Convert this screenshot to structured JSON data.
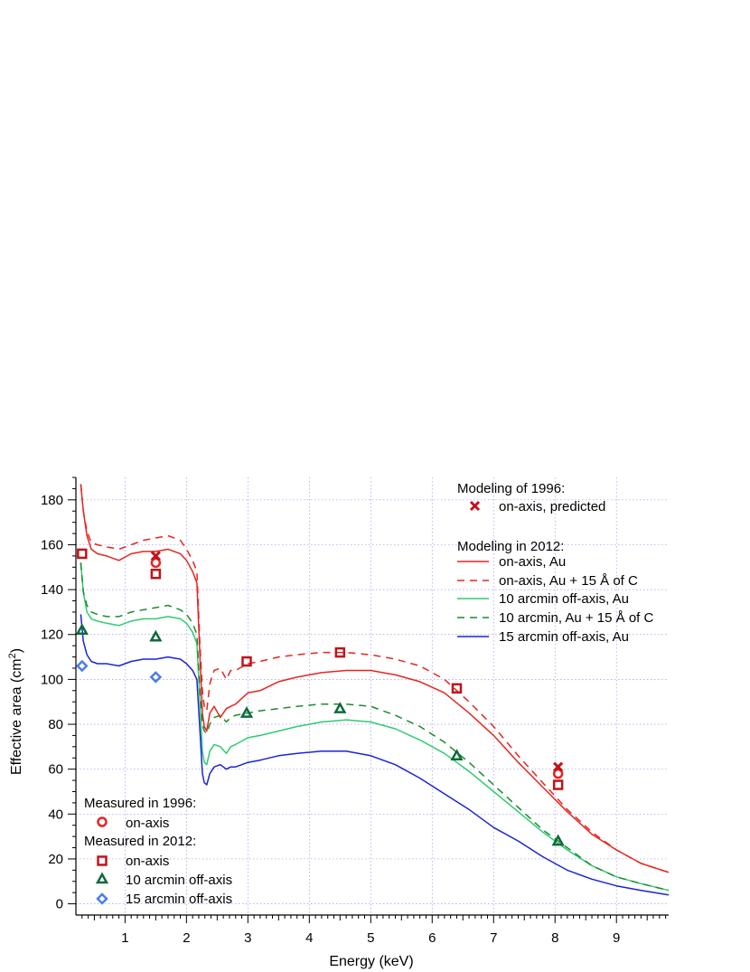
{
  "chart_data": {
    "type": "line",
    "xlabel": "Energy (keV)",
    "ylabel_main": "Effective area (cm",
    "ylabel_sup": "2",
    "ylabel_close": ")",
    "xlim": [
      0.2,
      9.85
    ],
    "ylim": [
      -5,
      190
    ],
    "x_ticks": [
      1,
      2,
      3,
      4,
      5,
      6,
      7,
      8,
      9
    ],
    "y_ticks": [
      0,
      20,
      40,
      60,
      80,
      100,
      120,
      140,
      160,
      180
    ],
    "x_tick_labels": [
      "1",
      "2",
      "3",
      "4",
      "5",
      "6",
      "7",
      "8",
      "9"
    ],
    "y_tick_labels": [
      "0",
      "20",
      "40",
      "60",
      "80",
      "100",
      "120",
      "140",
      "160",
      "180"
    ],
    "grid": true,
    "legend_top_right": {
      "header1": "Modeling of 1996:",
      "entry_pred": "on-axis, predicted",
      "header2": "Modeling in 2012:",
      "entry_au": "on-axis, Au",
      "entry_auc": "on-axis,  Au + 15 Å of C",
      "entry_10au": "10 arcmin off-axis, Au",
      "entry_10auc": "10 arcmin, Au + 15 Å of C",
      "entry_15au": "15 arcmin off-axis, Au"
    },
    "legend_bottom_left": {
      "header1": "Measured in 1996:",
      "entry_m96": "on-axis",
      "header2": "Measured in 2012:",
      "entry_m12on": "on-axis",
      "entry_m12_10": "10 arcmin off-axis",
      "entry_m12_15": "15 arcmin off-axis"
    },
    "colors": {
      "red": "#e8251f",
      "darkred": "#c4121a",
      "green": "#2ecc71",
      "darkgreen": "#1d8a2e",
      "triangle": "#0e6b3a",
      "blue": "#1a24d6",
      "lightblue": "#4a7de8"
    },
    "series": [
      {
        "name": "on-axis, Au",
        "color": "#e8251f",
        "dash": false,
        "x": [
          0.28,
          0.32,
          0.38,
          0.45,
          0.55,
          0.7,
          0.9,
          1.1,
          1.3,
          1.5,
          1.7,
          1.9,
          2.0,
          2.1,
          2.17,
          2.22,
          2.26,
          2.29,
          2.33,
          2.38,
          2.45,
          2.55,
          2.65,
          2.72,
          2.8,
          3.0,
          3.2,
          3.5,
          3.8,
          4.2,
          4.6,
          5.0,
          5.4,
          5.8,
          6.2,
          6.6,
          7.0,
          7.4,
          7.8,
          8.2,
          8.6,
          9.0,
          9.4,
          9.85
        ],
        "y": [
          187,
          175,
          164,
          158,
          156,
          155,
          153,
          156,
          157,
          157,
          158,
          156,
          153,
          148,
          143,
          110,
          85,
          79,
          77,
          85,
          88,
          83,
          87,
          88,
          89,
          94,
          95,
          99,
          101,
          103,
          104,
          104,
          102,
          99,
          94,
          85,
          75,
          63,
          52,
          41,
          31,
          24,
          18,
          14
        ]
      },
      {
        "name": "on-axis,  Au + 15 Å of C",
        "color": "#e8251f",
        "dash": true,
        "x": [
          0.28,
          0.32,
          0.38,
          0.45,
          0.55,
          0.7,
          0.9,
          1.1,
          1.3,
          1.5,
          1.7,
          1.9,
          2.0,
          2.1,
          2.17,
          2.22,
          2.26,
          2.29,
          2.33,
          2.38,
          2.45,
          2.55,
          2.65,
          2.72,
          2.8,
          3.0,
          3.2,
          3.5,
          3.8,
          4.2,
          4.6,
          5.0,
          5.4,
          5.8,
          6.2,
          6.6,
          7.0,
          7.4,
          7.8,
          8.2,
          8.6,
          9.0,
          9.4,
          9.85
        ],
        "y": [
          187,
          175,
          166,
          161,
          160,
          159,
          158,
          160,
          162,
          163,
          164,
          162,
          158,
          153,
          148,
          115,
          95,
          88,
          86,
          98,
          104,
          105,
          100,
          104,
          104,
          107,
          108,
          110,
          111,
          112,
          112,
          111,
          109,
          106,
          100,
          90,
          79,
          66,
          54,
          42,
          32,
          24,
          18,
          14
        ]
      },
      {
        "name": "10 arcmin off-axis, Au",
        "color": "#2ecc71",
        "dash": false,
        "x": [
          0.28,
          0.32,
          0.38,
          0.45,
          0.55,
          0.7,
          0.9,
          1.1,
          1.3,
          1.5,
          1.7,
          1.9,
          2.0,
          2.1,
          2.17,
          2.22,
          2.26,
          2.29,
          2.33,
          2.38,
          2.45,
          2.55,
          2.65,
          2.72,
          2.8,
          3.0,
          3.2,
          3.5,
          3.8,
          4.2,
          4.6,
          5.0,
          5.4,
          5.8,
          6.2,
          6.6,
          7.0,
          7.4,
          7.8,
          8.2,
          8.6,
          9.0,
          9.4,
          9.85
        ],
        "y": [
          152,
          139,
          130,
          127,
          126,
          125,
          124,
          126,
          127,
          127,
          128,
          127,
          125,
          121,
          116,
          90,
          68,
          63,
          62,
          68,
          71,
          70,
          67,
          70,
          71,
          74,
          75,
          77,
          79,
          81,
          82,
          81,
          78,
          73,
          67,
          59,
          50,
          41,
          32,
          24,
          17,
          12,
          9,
          6
        ]
      },
      {
        "name": "10 arcmin, Au + 15 Å of C",
        "color": "#1d8a2e",
        "dash": true,
        "x": [
          0.28,
          0.32,
          0.38,
          0.45,
          0.55,
          0.7,
          0.9,
          1.1,
          1.3,
          1.5,
          1.7,
          1.9,
          2.0,
          2.1,
          2.17,
          2.22,
          2.26,
          2.29,
          2.33,
          2.38,
          2.45,
          2.55,
          2.65,
          2.72,
          2.8,
          3.0,
          3.2,
          3.5,
          3.8,
          4.2,
          4.6,
          5.0,
          5.4,
          5.8,
          6.2,
          6.6,
          7.0,
          7.4,
          7.8,
          8.2,
          8.6,
          9.0,
          9.4,
          9.85
        ],
        "y": [
          152,
          139,
          133,
          130,
          129,
          128,
          128,
          130,
          131,
          132,
          133,
          131,
          129,
          125,
          120,
          94,
          80,
          77,
          76,
          80,
          83,
          84,
          81,
          83,
          84,
          85,
          86,
          87,
          88,
          89,
          89,
          88,
          84,
          79,
          72,
          63,
          53,
          43,
          33,
          25,
          17,
          12,
          9,
          6
        ]
      },
      {
        "name": "15 arcmin off-axis, Au",
        "color": "#1a24d6",
        "dash": false,
        "x": [
          0.28,
          0.32,
          0.38,
          0.45,
          0.55,
          0.7,
          0.9,
          1.1,
          1.3,
          1.5,
          1.7,
          1.9,
          2.0,
          2.1,
          2.17,
          2.22,
          2.26,
          2.29,
          2.33,
          2.38,
          2.45,
          2.55,
          2.65,
          2.72,
          2.8,
          3.0,
          3.2,
          3.5,
          3.8,
          4.2,
          4.6,
          5.0,
          5.4,
          5.8,
          6.2,
          6.6,
          7.0,
          7.4,
          7.8,
          8.2,
          8.6,
          9.0,
          9.4,
          9.85
        ],
        "y": [
          129,
          117,
          111,
          108,
          107,
          107,
          106,
          108,
          109,
          109,
          110,
          109,
          107,
          104,
          100,
          77,
          58,
          54,
          53,
          58,
          61,
          62,
          60,
          61,
          61,
          63,
          64,
          66,
          67,
          68,
          68,
          66,
          62,
          56,
          49,
          42,
          34,
          28,
          21,
          15,
          11,
          8,
          6,
          4
        ]
      }
    ],
    "points": {
      "pred_1996": [
        [
          1.5,
          155
        ],
        [
          8.05,
          61
        ]
      ],
      "meas_1996": [
        [
          1.5,
          152
        ],
        [
          8.05,
          58
        ]
      ],
      "meas_2012_on": [
        [
          0.3,
          156
        ],
        [
          1.5,
          147
        ],
        [
          2.98,
          108
        ],
        [
          4.5,
          112
        ],
        [
          6.4,
          96
        ],
        [
          8.05,
          53
        ]
      ],
      "meas_2012_10": [
        [
          0.3,
          122
        ],
        [
          1.5,
          119
        ],
        [
          2.98,
          85
        ],
        [
          4.5,
          87
        ],
        [
          6.4,
          66
        ],
        [
          8.05,
          28
        ]
      ],
      "meas_2012_15": [
        [
          0.3,
          106
        ],
        [
          1.5,
          101
        ]
      ]
    }
  }
}
